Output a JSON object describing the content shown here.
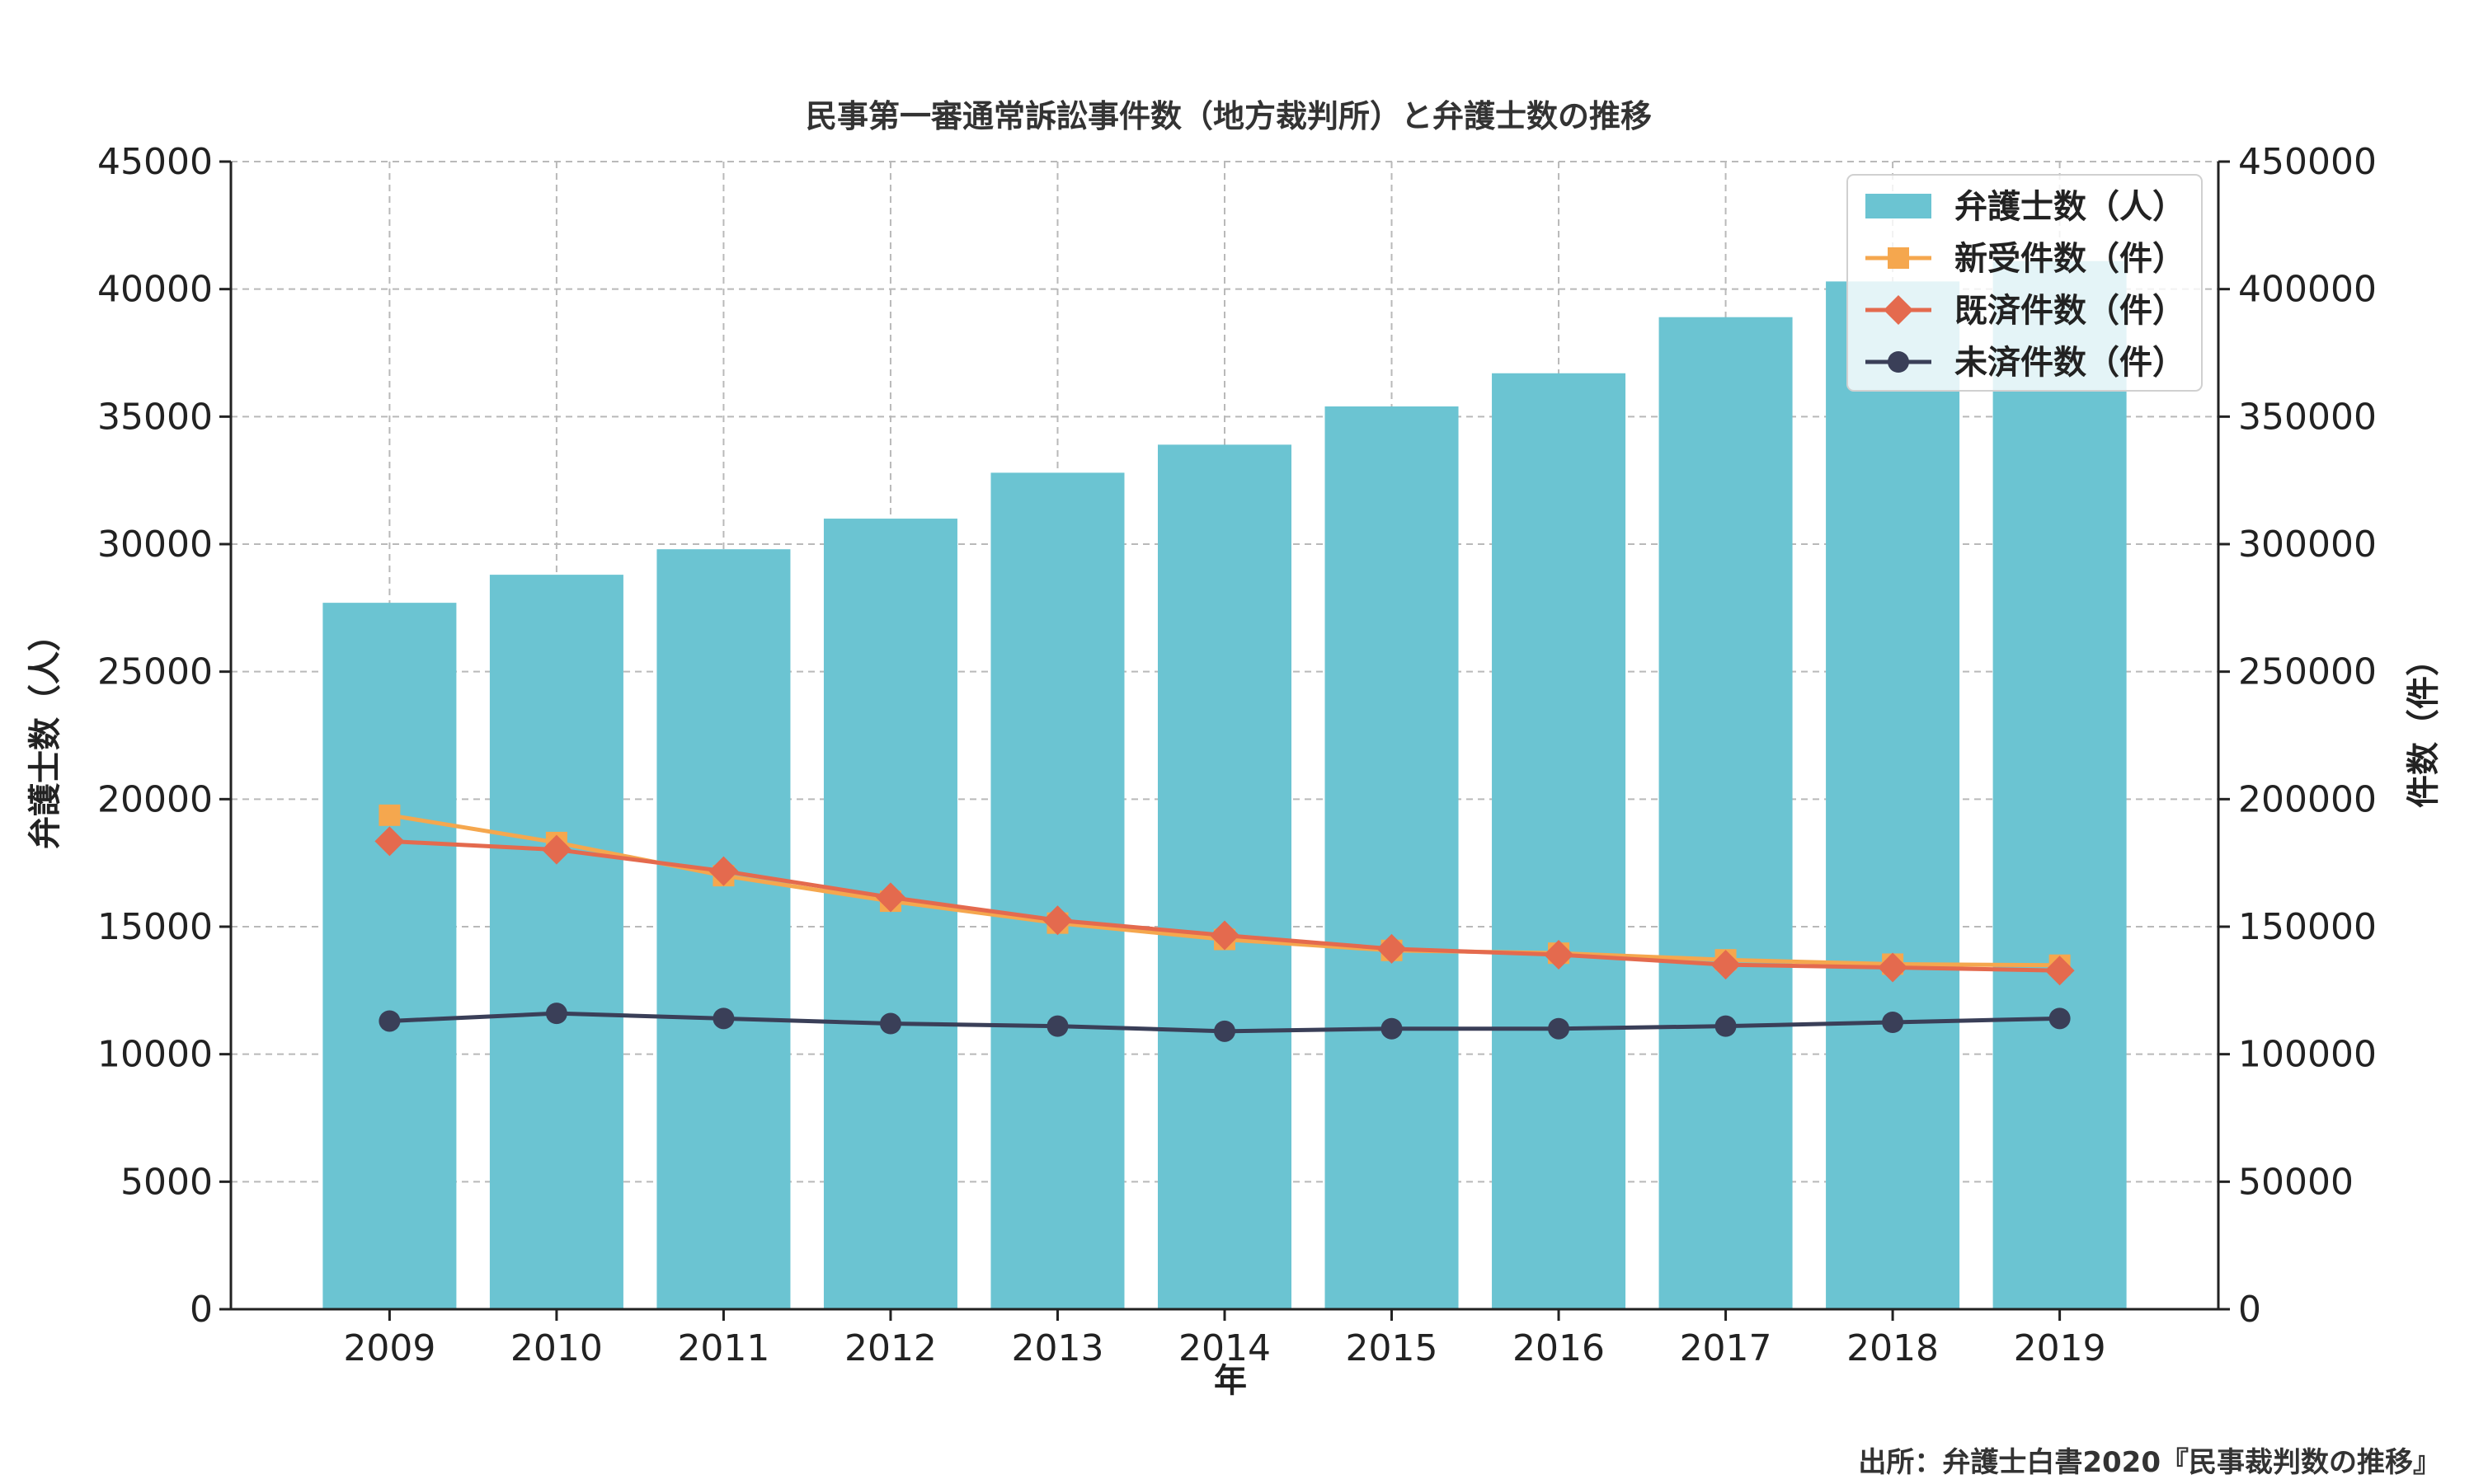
{
  "chart_data": {
    "type": "bar+line",
    "title": "民事第一審通常訴訟事件数（地方裁判所）と弁護士数の推移",
    "xlabel": "年",
    "ylabel_left": "弁護士数（人）",
    "ylabel_right": "件数（件）",
    "categories": [
      "2009",
      "2010",
      "2011",
      "2012",
      "2013",
      "2014",
      "2015",
      "2016",
      "2017",
      "2018",
      "2019"
    ],
    "ylim_left": [
      0,
      45000
    ],
    "ylim_right": [
      0,
      450000
    ],
    "yticks_left": [
      0,
      5000,
      10000,
      15000,
      20000,
      25000,
      30000,
      35000,
      40000,
      45000
    ],
    "yticks_right": [
      0,
      50000,
      100000,
      150000,
      200000,
      250000,
      300000,
      350000,
      400000,
      450000
    ],
    "grid": true,
    "legend_position": "top-right",
    "series": [
      {
        "name": "弁護士数（人）",
        "kind": "bar",
        "axis": "left",
        "color": "#6bc4d2",
        "values": [
          27700,
          28800,
          29800,
          31000,
          32800,
          33900,
          35400,
          36700,
          38900,
          40300,
          41100
        ]
      },
      {
        "name": "新受件数（件）",
        "kind": "line",
        "axis": "right",
        "color": "#f5a74e",
        "marker": "square",
        "values": [
          193700,
          183000,
          170000,
          160000,
          151400,
          145000,
          140700,
          139600,
          137000,
          135300,
          134900
        ]
      },
      {
        "name": "既済件数（件）",
        "kind": "line",
        "axis": "right",
        "color": "#e46a4e",
        "marker": "diamond",
        "values": [
          183500,
          180200,
          171800,
          161500,
          152500,
          146600,
          141300,
          139000,
          135100,
          134000,
          132800
        ]
      },
      {
        "name": "未済件数（件）",
        "kind": "line",
        "axis": "right",
        "color": "#3a3f58",
        "marker": "circle",
        "values": [
          113000,
          116000,
          114000,
          112000,
          111000,
          109000,
          110000,
          110000,
          111000,
          112500,
          114000
        ]
      }
    ]
  },
  "source_note": "出所：弁護士白書2020『民事裁判数の推移』"
}
